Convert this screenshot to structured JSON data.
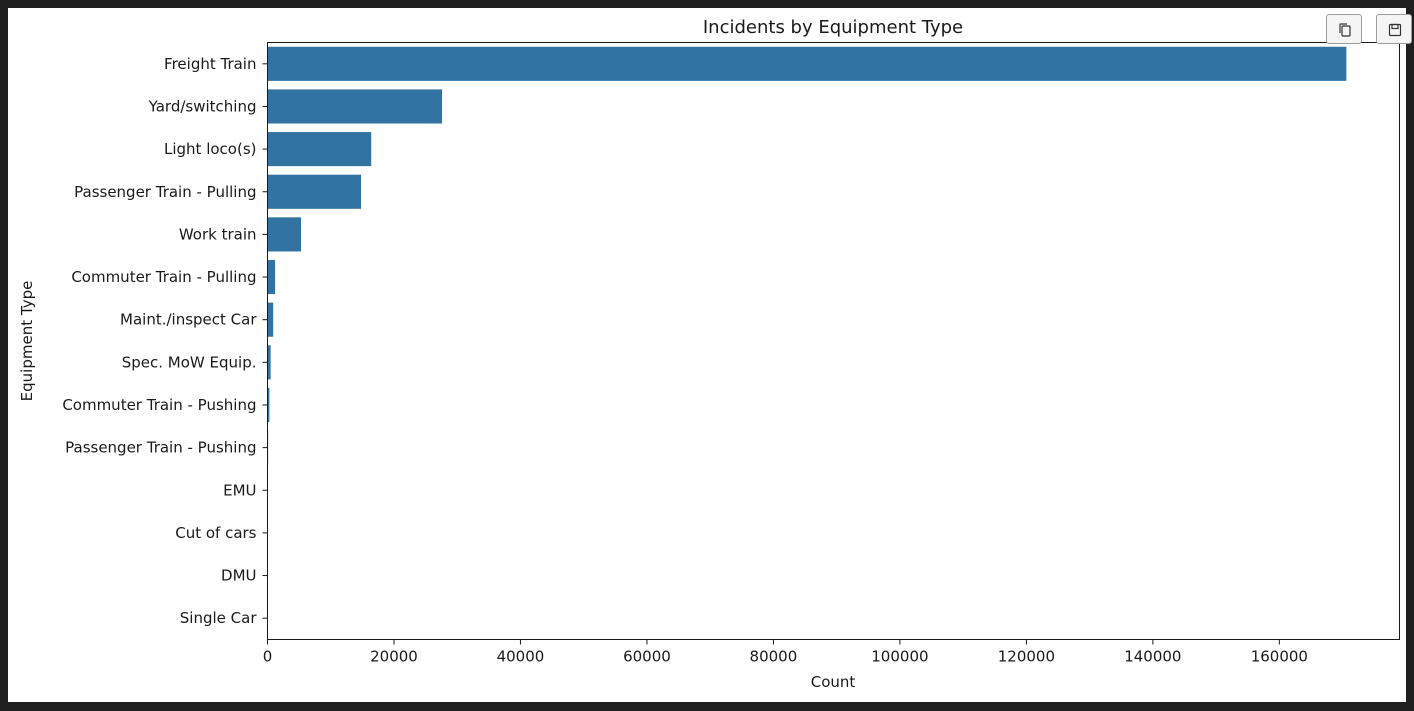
{
  "toolbar": {
    "copy_icon": "copy-icon",
    "save_icon": "save-icon"
  },
  "colors": {
    "bar": "#3274a1",
    "axis": "#1a1a1a",
    "background": "#ffffff",
    "outer": "#1f1f1f"
  },
  "chart_data": {
    "type": "bar",
    "orientation": "horizontal",
    "title": "Incidents by Equipment Type",
    "xlabel": "Count",
    "ylabel": "Equipment Type",
    "grid": false,
    "xlim": [
      0,
      179000
    ],
    "xticks": [
      0,
      20000,
      40000,
      60000,
      80000,
      100000,
      120000,
      140000,
      160000
    ],
    "categories": [
      "Freight Train",
      "Yard/switching",
      "Light loco(s)",
      "Passenger Train - Pulling",
      "Work train",
      "Commuter Train - Pulling",
      "Maint./inspect Car",
      "Spec. MoW Equip.",
      "Commuter Train - Pushing",
      "Passenger Train - Pushing",
      "EMU",
      "Cut of cars",
      "DMU",
      "Single Car"
    ],
    "values": [
      170600,
      27600,
      16400,
      14800,
      5300,
      1200,
      900,
      500,
      300,
      100,
      50,
      30,
      20,
      10
    ]
  }
}
